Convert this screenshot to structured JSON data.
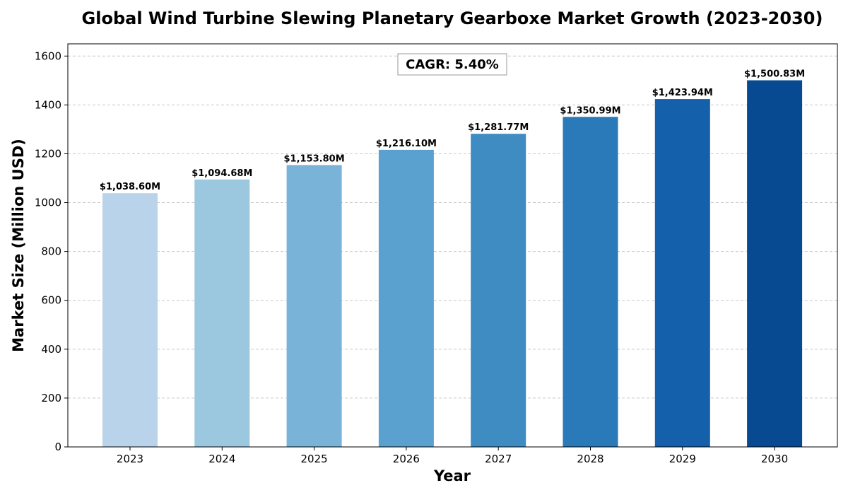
{
  "chart_data": {
    "type": "bar",
    "title": "Global Wind Turbine Slewing Planetary Gearboxe Market Growth (2023-2030)",
    "xlabel": "Year",
    "ylabel": "Market Size (Million USD)",
    "categories": [
      "2023",
      "2024",
      "2025",
      "2026",
      "2027",
      "2028",
      "2029",
      "2030"
    ],
    "values": [
      1038.6,
      1094.68,
      1153.8,
      1216.1,
      1281.77,
      1350.99,
      1423.94,
      1500.83
    ],
    "data_labels": [
      "$1,038.60M",
      "$1,094.68M",
      "$1,153.80M",
      "$1,216.10M",
      "$1,281.77M",
      "$1,350.99M",
      "$1,423.94M",
      "$1,500.83M"
    ],
    "bar_colors": [
      "#b9d4ea",
      "#9bc7df",
      "#79b4d8",
      "#5aa1cf",
      "#3f8cc3",
      "#2a79b9",
      "#1460aa",
      "#084a91"
    ],
    "ylim": [
      0,
      1650
    ],
    "yticks": [
      0,
      200,
      400,
      600,
      800,
      1000,
      1200,
      1400,
      1600
    ],
    "grid": true,
    "annotation": "CAGR: 5.40%"
  }
}
